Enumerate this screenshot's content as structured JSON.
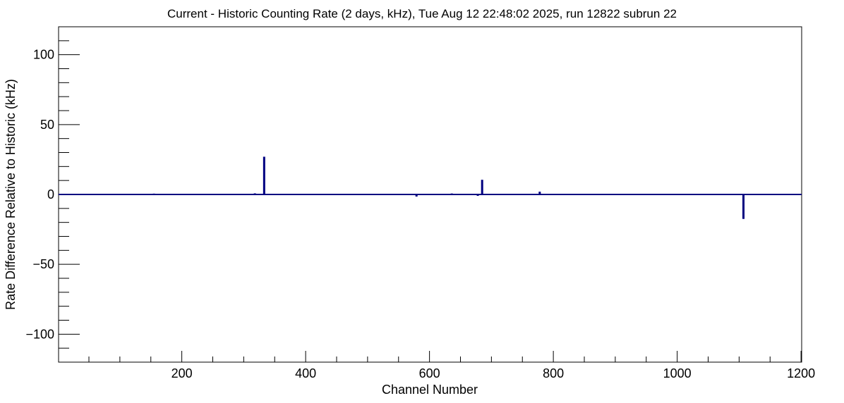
{
  "chart_data": {
    "type": "bar",
    "title": "Current - Historic Counting Rate (2 days, kHz), Tue Aug 12 22:48:02 2025, run 12822 subrun 22",
    "xlabel": "Channel Number",
    "ylabel": "Rate Difference Relative to Historic (kHz)",
    "xlim": [
      1,
      1201
    ],
    "ylim": [
      -120,
      120
    ],
    "x_ticks": [
      200,
      400,
      600,
      800,
      1000,
      1200
    ],
    "y_ticks": [
      -100,
      -50,
      0,
      50,
      100
    ],
    "grid": false,
    "legend": "none",
    "color": "#000080",
    "x": [
      75,
      110,
      155,
      318,
      333,
      360,
      375,
      435,
      579,
      636,
      678,
      685,
      762,
      778,
      815,
      955,
      975,
      1010,
      1085,
      1107,
      1162
    ],
    "values": [
      0.3,
      -0.4,
      0.6,
      0.8,
      27.0,
      0.4,
      0.3,
      0.3,
      -1.5,
      0.7,
      -1.0,
      10.5,
      0.4,
      2.0,
      0.3,
      0.3,
      -0.4,
      -0.5,
      0.3,
      -17.5,
      -0.4
    ]
  }
}
